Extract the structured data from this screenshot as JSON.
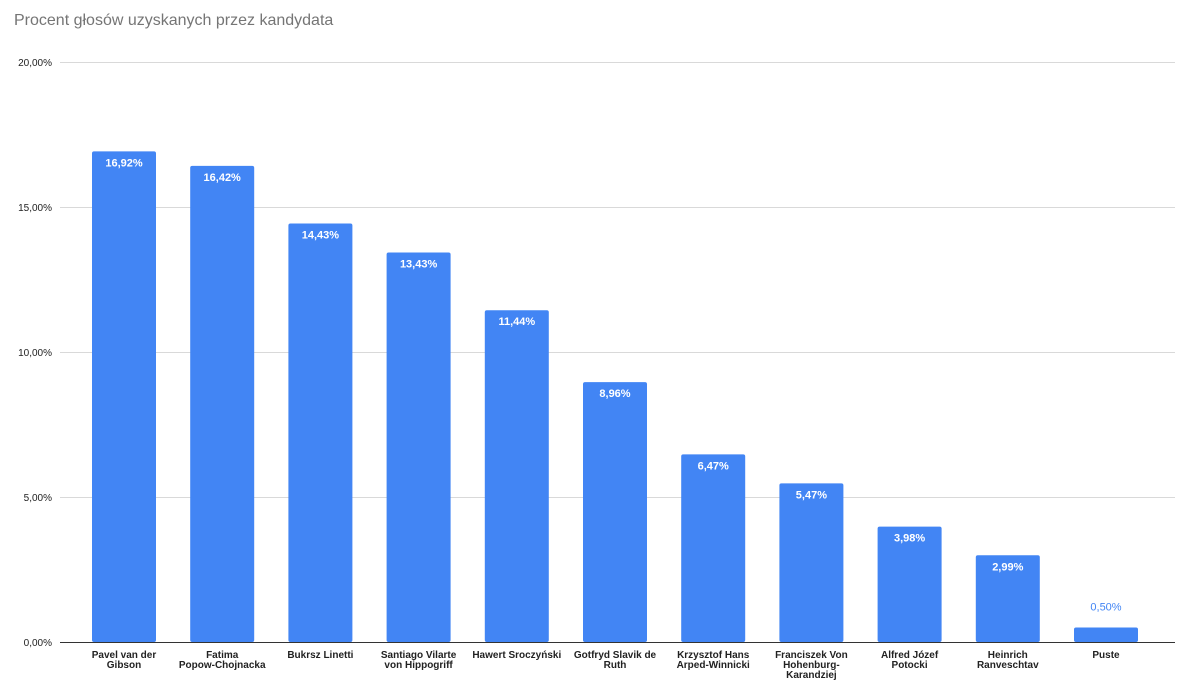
{
  "chart_data": {
    "type": "bar",
    "title": "Procent głosów uzyskanych przez kandydata",
    "xlabel": "",
    "ylabel": "",
    "ylim": [
      0,
      20
    ],
    "yticks": [
      0,
      5,
      10,
      15,
      20
    ],
    "ytick_labels": [
      "0,00%",
      "5,00%",
      "10,00%",
      "15,00%",
      "20,00%"
    ],
    "grid": true,
    "legend": "none",
    "bar_color": "#4285f4",
    "categories": [
      "Pavel van der Gibson",
      "Fatima Popow-Chojnacka",
      "Bukrsz Linetti",
      "Santiago Vilarte von Hippogriff",
      "Hawert Sroczyński",
      "Gotfryd Slavik de Ruth",
      "Krzysztof Hans Arped-Winnicki",
      "Franciszek Von Hohenburg-Karandziej",
      "Alfred Józef Potocki",
      "Heinrich Ranveschtav",
      "Puste"
    ],
    "category_label_lines": [
      [
        "Pavel van der",
        "Gibson"
      ],
      [
        "Fatima",
        "Popow-Chojnacka"
      ],
      [
        "Bukrsz Linetti"
      ],
      [
        "Santiago Vilarte",
        "von Hippogriff"
      ],
      [
        "Hawert Sroczyński"
      ],
      [
        "Gotfryd Slavik de",
        "Ruth"
      ],
      [
        "Krzysztof Hans",
        "Arped-Winnicki"
      ],
      [
        "Franciszek Von",
        "Hohenburg-",
        "Karandziej"
      ],
      [
        "Alfred Józef",
        "Potocki"
      ],
      [
        "Heinrich",
        "Ranveschtav"
      ],
      [
        "Puste"
      ]
    ],
    "values": [
      16.92,
      16.42,
      14.43,
      13.43,
      11.44,
      8.96,
      6.47,
      5.47,
      3.98,
      2.99,
      0.5
    ],
    "data_labels": [
      "16,92%",
      "16,42%",
      "14,43%",
      "13,43%",
      "11,44%",
      "8,96%",
      "6,47%",
      "5,47%",
      "3,98%",
      "2,99%",
      "0,50%"
    ]
  }
}
